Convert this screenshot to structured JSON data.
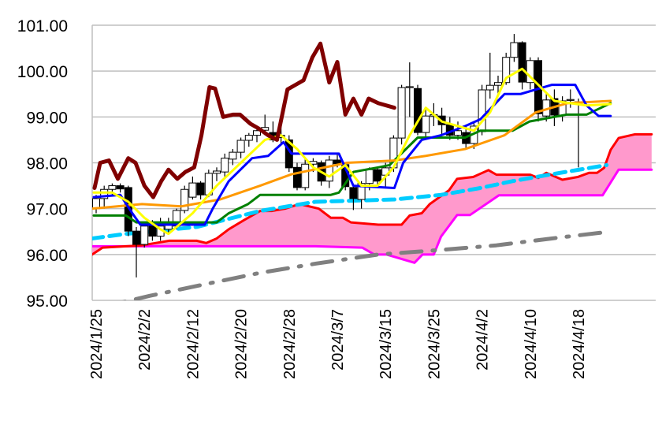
{
  "chart_data": {
    "type": "candlestick-ichimoku",
    "title": "",
    "xlabel": "",
    "ylabel": "",
    "ylim": [
      95.0,
      101.0
    ],
    "grid": true,
    "y_ticks": [
      "95.00",
      "96.00",
      "97.00",
      "98.00",
      "99.00",
      "100.00",
      "101.00"
    ],
    "x_ticks": [
      {
        "index": 0,
        "label": "2024/1/25"
      },
      {
        "index": 6,
        "label": "2024/2/2"
      },
      {
        "index": 12,
        "label": "2024/2/12"
      },
      {
        "index": 18,
        "label": "2024/2/20"
      },
      {
        "index": 24,
        "label": "2024/2/28"
      },
      {
        "index": 30,
        "label": "2024/3/7"
      },
      {
        "index": 36,
        "label": "2024/3/15"
      },
      {
        "index": 42,
        "label": "2024/3/25"
      },
      {
        "index": 48,
        "label": "2024/4/2"
      },
      {
        "index": 54,
        "label": "2024/4/10"
      },
      {
        "index": 60,
        "label": "2024/4/18"
      }
    ],
    "candles_ohlc": [
      [
        97.0,
        97.3,
        96.9,
        97.22
      ],
      [
        97.22,
        97.5,
        97.0,
        97.42
      ],
      [
        97.42,
        97.55,
        97.3,
        97.5
      ],
      [
        97.5,
        97.55,
        97.35,
        97.43
      ],
      [
        97.46,
        97.5,
        96.4,
        96.51
      ],
      [
        96.51,
        96.6,
        95.5,
        96.22
      ],
      [
        96.22,
        96.7,
        96.15,
        96.62
      ],
      [
        96.62,
        96.75,
        96.3,
        96.4
      ],
      [
        96.4,
        96.8,
        96.3,
        96.62
      ],
      [
        96.55,
        96.8,
        96.45,
        96.65
      ],
      [
        96.62,
        97.0,
        96.55,
        96.96
      ],
      [
        96.96,
        97.5,
        96.9,
        97.42
      ],
      [
        97.25,
        97.7,
        97.2,
        97.56
      ],
      [
        97.56,
        97.6,
        97.2,
        97.3
      ],
      [
        97.3,
        97.85,
        97.25,
        97.77
      ],
      [
        97.77,
        97.9,
        97.6,
        97.82
      ],
      [
        97.8,
        98.2,
        97.7,
        98.1
      ],
      [
        98.08,
        98.3,
        97.95,
        98.23
      ],
      [
        98.23,
        98.55,
        98.1,
        98.49
      ],
      [
        98.49,
        98.65,
        98.35,
        98.6
      ],
      [
        98.6,
        98.75,
        98.45,
        98.7
      ],
      [
        98.71,
        99.05,
        98.6,
        98.77
      ],
      [
        98.66,
        98.9,
        98.45,
        98.5
      ],
      [
        98.55,
        98.95,
        98.4,
        98.6
      ],
      [
        98.5,
        98.6,
        97.8,
        97.89
      ],
      [
        97.9,
        98.0,
        97.4,
        97.46
      ],
      [
        97.46,
        98.1,
        97.4,
        97.97
      ],
      [
        97.97,
        98.1,
        97.8,
        98.03
      ],
      [
        98.0,
        98.05,
        97.5,
        97.6
      ],
      [
        97.6,
        98.15,
        97.45,
        98.06
      ],
      [
        98.06,
        98.2,
        97.9,
        97.98
      ],
      [
        97.96,
        98.0,
        97.4,
        97.48
      ],
      [
        97.46,
        97.5,
        96.97,
        97.22
      ],
      [
        97.2,
        97.6,
        97.0,
        97.55
      ],
      [
        97.55,
        97.9,
        97.4,
        97.85
      ],
      [
        97.85,
        97.9,
        97.5,
        97.6
      ],
      [
        97.73,
        98.0,
        97.45,
        97.89
      ],
      [
        97.89,
        98.6,
        97.8,
        98.54
      ],
      [
        98.54,
        99.7,
        98.4,
        99.64
      ],
      [
        99.64,
        100.19,
        99.0,
        99.66
      ],
      [
        99.62,
        99.7,
        98.6,
        98.66
      ],
      [
        98.66,
        99.2,
        98.5,
        99.02
      ],
      [
        99.02,
        99.3,
        98.8,
        99.05
      ],
      [
        99.02,
        99.2,
        98.6,
        98.83
      ],
      [
        98.83,
        99.0,
        98.5,
        98.6
      ],
      [
        98.6,
        98.9,
        98.5,
        98.7
      ],
      [
        98.66,
        98.8,
        98.3,
        98.42
      ],
      [
        98.42,
        98.9,
        98.3,
        98.8
      ],
      [
        98.68,
        99.7,
        98.6,
        99.59
      ],
      [
        99.59,
        100.4,
        99.4,
        99.69
      ],
      [
        99.69,
        99.9,
        99.5,
        99.75
      ],
      [
        99.75,
        100.4,
        99.7,
        100.3
      ],
      [
        100.3,
        100.81,
        100.2,
        100.62
      ],
      [
        100.62,
        100.65,
        99.6,
        99.76
      ],
      [
        99.75,
        100.3,
        99.6,
        100.23
      ],
      [
        100.23,
        100.3,
        98.9,
        99.07
      ],
      [
        99.02,
        99.5,
        98.9,
        99.37
      ],
      [
        99.4,
        99.6,
        98.8,
        99.04
      ],
      [
        99.04,
        99.45,
        98.9,
        99.35
      ],
      [
        99.36,
        99.6,
        99.2,
        99.38
      ],
      [
        99.33,
        99.4,
        97.9,
        99.33
      ]
    ],
    "series": [
      {
        "name": "span-a",
        "color": "#ff0000",
        "points": [
          [
            -0.5,
            96.0
          ],
          [
            0.8,
            96.15
          ],
          [
            5.7,
            96.2
          ],
          [
            9.1,
            96.3
          ],
          [
            12.5,
            96.3
          ],
          [
            13.7,
            96.25
          ],
          [
            15,
            96.35
          ],
          [
            16.5,
            96.55
          ],
          [
            18.4,
            96.75
          ],
          [
            20.4,
            96.95
          ],
          [
            21.9,
            96.95
          ],
          [
            23.5,
            97.0
          ],
          [
            25.3,
            97.1
          ],
          [
            27.7,
            97.0
          ],
          [
            29.2,
            96.8
          ],
          [
            30.7,
            96.8
          ],
          [
            31.7,
            96.7
          ],
          [
            35.1,
            96.65
          ],
          [
            38,
            96.65
          ],
          [
            39,
            96.85
          ],
          [
            40.5,
            96.9
          ],
          [
            41.5,
            97.1
          ],
          [
            43.9,
            97.4
          ],
          [
            44.9,
            97.65
          ],
          [
            46.9,
            97.69
          ],
          [
            48.8,
            97.84
          ],
          [
            49.8,
            97.74
          ],
          [
            54,
            97.74
          ],
          [
            55,
            97.67
          ],
          [
            56,
            97.78
          ],
          [
            58,
            97.63
          ],
          [
            59.9,
            97.69
          ],
          [
            61.3,
            97.78
          ],
          [
            62.3,
            97.78
          ],
          [
            63.2,
            97.89
          ],
          [
            64,
            98.28
          ],
          [
            65,
            98.54
          ],
          [
            67,
            98.62
          ],
          [
            69.1,
            98.62
          ]
        ]
      },
      {
        "name": "span-b",
        "color": "#ff00ff",
        "points": [
          [
            -0.5,
            96.18
          ],
          [
            27.3,
            96.18
          ],
          [
            33.1,
            96.15
          ],
          [
            34.6,
            96.0
          ],
          [
            36.1,
            96.0
          ],
          [
            39.6,
            95.82
          ],
          [
            40.6,
            96.0
          ],
          [
            42,
            96.0
          ],
          [
            42.9,
            96.39
          ],
          [
            44.9,
            96.86
          ],
          [
            46.5,
            96.86
          ],
          [
            50.1,
            97.29
          ],
          [
            63,
            97.29
          ],
          [
            65,
            97.85
          ],
          [
            69.1,
            97.85
          ]
        ]
      },
      {
        "name": "cyan-dashed-line",
        "color": "#00ccff",
        "points": [
          [
            -0.5,
            96.35
          ],
          [
            3.7,
            96.45
          ],
          [
            12.5,
            96.6
          ],
          [
            20.4,
            96.95
          ],
          [
            27.3,
            97.15
          ],
          [
            37.1,
            97.2
          ],
          [
            42.9,
            97.3
          ],
          [
            47.8,
            97.45
          ],
          [
            51.8,
            97.6
          ],
          [
            56.7,
            97.75
          ],
          [
            63.5,
            97.95
          ]
        ]
      },
      {
        "name": "gray-dash-dot-line",
        "color": "#808080",
        "points": [
          [
            -0.5,
            94.8
          ],
          [
            6.7,
            95.1
          ],
          [
            13.5,
            95.35
          ],
          [
            20.4,
            95.6
          ],
          [
            27.3,
            95.8
          ],
          [
            35.1,
            96.0
          ],
          [
            42.9,
            96.1
          ],
          [
            49.8,
            96.2
          ],
          [
            56.7,
            96.35
          ],
          [
            64,
            96.5
          ]
        ]
      },
      {
        "name": "green-line",
        "color": "#008000",
        "points": [
          [
            -0.3,
            96.85
          ],
          [
            3.7,
            96.85
          ],
          [
            5,
            96.7
          ],
          [
            15,
            96.7
          ],
          [
            16.5,
            96.9
          ],
          [
            18.9,
            97.1
          ],
          [
            20.4,
            97.3
          ],
          [
            29.2,
            97.3
          ],
          [
            30.2,
            97.35
          ],
          [
            32,
            97.8
          ],
          [
            35.1,
            97.9
          ],
          [
            36.5,
            97.95
          ],
          [
            40,
            98.55
          ],
          [
            45.9,
            98.55
          ],
          [
            47.8,
            98.7
          ],
          [
            51.8,
            98.7
          ],
          [
            53.9,
            98.9
          ],
          [
            58.5,
            99.05
          ],
          [
            61,
            99.05
          ],
          [
            64,
            99.3
          ]
        ]
      },
      {
        "name": "orange-line",
        "color": "#ff9900",
        "points": [
          [
            -0.5,
            97.0
          ],
          [
            5.7,
            97.1
          ],
          [
            10.6,
            97.05
          ],
          [
            15.4,
            97.2
          ],
          [
            20.4,
            97.5
          ],
          [
            24.3,
            97.75
          ],
          [
            31.2,
            98.0
          ],
          [
            37.1,
            98.05
          ],
          [
            41,
            98.15
          ],
          [
            45.9,
            98.3
          ],
          [
            50.8,
            98.6
          ],
          [
            54.7,
            99.1
          ],
          [
            58.6,
            99.3
          ],
          [
            64,
            99.35
          ]
        ]
      },
      {
        "name": "blue-line",
        "color": "#0000ff",
        "points": [
          [
            -0.3,
            97.25
          ],
          [
            3,
            97.3
          ],
          [
            4.5,
            96.9
          ],
          [
            5.5,
            96.65
          ],
          [
            13.5,
            96.65
          ],
          [
            14.5,
            97.0
          ],
          [
            16.5,
            97.6
          ],
          [
            19.4,
            98.1
          ],
          [
            21.4,
            98.15
          ],
          [
            23.3,
            98.45
          ],
          [
            24.3,
            98.2
          ],
          [
            30.2,
            98.2
          ],
          [
            32,
            97.5
          ],
          [
            37.1,
            97.45
          ],
          [
            38.2,
            98.0
          ],
          [
            40.5,
            98.5
          ],
          [
            42.9,
            98.6
          ],
          [
            45.9,
            98.8
          ],
          [
            47.8,
            98.95
          ],
          [
            50.8,
            99.5
          ],
          [
            52.8,
            99.5
          ],
          [
            56.7,
            99.7
          ],
          [
            59.6,
            99.7
          ],
          [
            61,
            99.25
          ],
          [
            62.5,
            99.02
          ],
          [
            64,
            99.02
          ]
        ]
      },
      {
        "name": "yellow-line",
        "color": "#ffff00",
        "points": [
          [
            -0.3,
            97.35
          ],
          [
            2,
            97.35
          ],
          [
            4,
            97.15
          ],
          [
            6,
            96.8
          ],
          [
            8,
            96.55
          ],
          [
            9,
            96.45
          ],
          [
            12,
            96.9
          ],
          [
            15,
            97.5
          ],
          [
            18,
            98.0
          ],
          [
            21,
            98.5
          ],
          [
            23,
            98.6
          ],
          [
            25,
            98.3
          ],
          [
            27,
            97.9
          ],
          [
            29,
            97.7
          ],
          [
            31,
            97.95
          ],
          [
            33,
            97.5
          ],
          [
            35,
            97.5
          ],
          [
            37,
            97.9
          ],
          [
            39,
            98.6
          ],
          [
            41,
            99.2
          ],
          [
            43,
            98.9
          ],
          [
            45,
            98.8
          ],
          [
            47,
            98.7
          ],
          [
            49,
            99.1
          ],
          [
            51,
            99.85
          ],
          [
            53,
            100.05
          ],
          [
            55,
            99.7
          ],
          [
            57,
            99.35
          ],
          [
            59,
            99.3
          ],
          [
            61,
            99.25
          ],
          [
            64,
            99.28
          ]
        ]
      },
      {
        "name": "lagging-line",
        "color": "#800000",
        "points": [
          [
            -0.2,
            97.45
          ],
          [
            0.5,
            98.0
          ],
          [
            1.6,
            98.05
          ],
          [
            2.7,
            97.65
          ],
          [
            4,
            98.1
          ],
          [
            4.9,
            98.0
          ],
          [
            6,
            97.5
          ],
          [
            7.1,
            97.25
          ],
          [
            8.1,
            97.6
          ],
          [
            9,
            97.85
          ],
          [
            10.1,
            97.65
          ],
          [
            11.1,
            97.8
          ],
          [
            12.2,
            97.9
          ],
          [
            13.1,
            98.6
          ],
          [
            14.1,
            99.65
          ],
          [
            14.8,
            99.62
          ],
          [
            15.8,
            99.0
          ],
          [
            17,
            99.05
          ],
          [
            17.9,
            99.05
          ],
          [
            19.2,
            98.85
          ],
          [
            20.2,
            98.75
          ],
          [
            21.4,
            98.6
          ],
          [
            22.5,
            98.5
          ],
          [
            23.8,
            99.6
          ],
          [
            24.8,
            99.7
          ],
          [
            25.8,
            99.8
          ],
          [
            26.9,
            100.3
          ],
          [
            27.9,
            100.6
          ],
          [
            29,
            99.75
          ],
          [
            30,
            100.2
          ],
          [
            31,
            99.05
          ],
          [
            32,
            99.4
          ],
          [
            33,
            99.05
          ],
          [
            33.9,
            99.4
          ],
          [
            35.1,
            99.3
          ],
          [
            37.1,
            99.2
          ]
        ]
      }
    ],
    "cloud_fill": "#ff99cc"
  }
}
